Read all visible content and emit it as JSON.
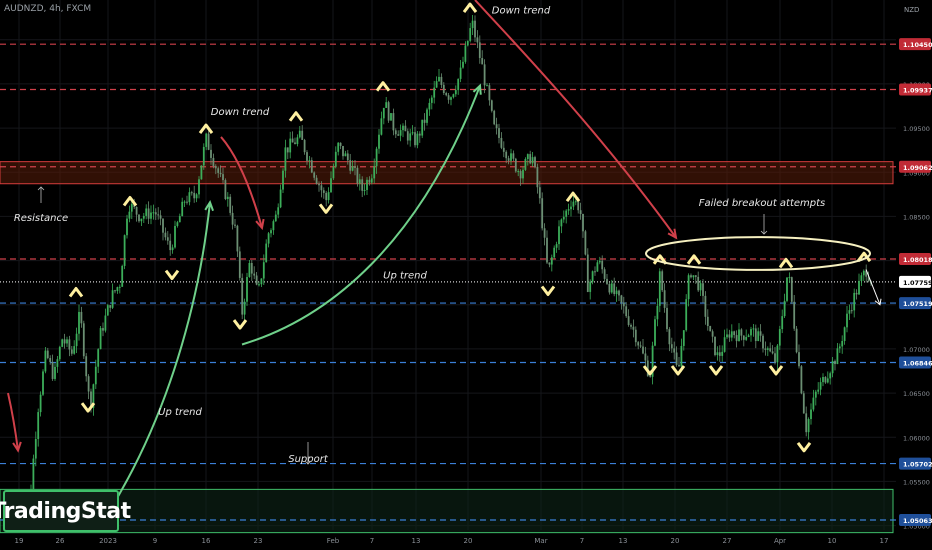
{
  "header": {
    "symbol": "AUDNZD, 4h, FXCM"
  },
  "currency_label": "NZD",
  "brand": {
    "name": "TradingStat"
  },
  "colors": {
    "background": "#000000",
    "candle_up": "#3cae5a",
    "candle_down": "#6b8f73",
    "resistance_line": "#d0404a",
    "support_line": "#3b7fd6",
    "resistance_zone": "#d43c3c",
    "support_zone": "#3fbf6a",
    "up_arrow": "#6fd08a",
    "down_arrow": "#d0404a",
    "swing_marker": "#fff0a0"
  },
  "chart_data": {
    "type": "candlestick",
    "symbol": "AUDNZD",
    "timeframe": "4h",
    "source": "FXCM",
    "ylim": [
      1.0495,
      1.1095
    ],
    "y_ticks": [
      1.05,
      1.055,
      1.06,
      1.065,
      1.07,
      1.075,
      1.08,
      1.085,
      1.09,
      1.095,
      1.1,
      1.105
    ],
    "y_tick_labels": [
      "1.05000",
      "1.05500",
      "1.06000",
      "1.06500",
      "1.07000",
      "1.07500",
      "1.08000",
      "1.08500",
      "1.09000",
      "1.09500",
      "1.10000",
      "1.10500"
    ],
    "x_tick_labels": [
      "19",
      "26",
      "2023",
      "9",
      "16",
      "23",
      "Feb",
      "7",
      "13",
      "20",
      "Mar",
      "7",
      "13",
      "20",
      "27",
      "Apr",
      "10",
      "17"
    ],
    "x_tick_values": [
      19,
      60,
      108,
      155,
      206,
      258,
      333,
      372,
      416,
      468,
      541,
      582,
      623,
      675,
      727,
      780,
      832,
      884
    ],
    "price_levels": [
      {
        "label": "1.10450",
        "value": 1.1045,
        "style": "dashed",
        "color": "#d0404a"
      },
      {
        "label": "1.09937",
        "value": 1.09937,
        "style": "dashed",
        "color": "#d0404a"
      },
      {
        "label": "1.09062",
        "value": 1.09062,
        "style": "dashed",
        "color": "#d0404a"
      },
      {
        "label": "1.08018",
        "value": 1.08018,
        "style": "dashed",
        "color": "#d0404a"
      },
      {
        "label": "1.07759",
        "value": 1.07759,
        "style": "dotted",
        "color": "#cfcfcf"
      },
      {
        "label": "1.07519",
        "value": 1.07519,
        "style": "dashed",
        "color": "#3b7fd6"
      },
      {
        "label": "1.06846",
        "value": 1.06846,
        "style": "dashed",
        "color": "#3b7fd6"
      },
      {
        "label": "1.05702",
        "value": 1.05702,
        "style": "dashed",
        "color": "#3b7fd6"
      },
      {
        "label": "1.05063",
        "value": 1.05063,
        "style": "dashed",
        "color": "#3b7fd6"
      }
    ],
    "zones": [
      {
        "name": "Resistance",
        "y_top": 1.0912,
        "y_bottom": 1.0887
      },
      {
        "name": "Support",
        "y_top": 1.0541,
        "y_bottom": 1.0492
      }
    ],
    "price_path": [
      [
        19,
        1.0505
      ],
      [
        30,
        1.0532
      ],
      [
        38,
        1.0633
      ],
      [
        46,
        1.0695
      ],
      [
        54,
        1.0668
      ],
      [
        62,
        1.0712
      ],
      [
        72,
        1.0695
      ],
      [
        80,
        1.074
      ],
      [
        90,
        1.0633
      ],
      [
        100,
        1.0715
      ],
      [
        112,
        1.076
      ],
      [
        120,
        1.0775
      ],
      [
        128,
        1.0865
      ],
      [
        140,
        1.085
      ],
      [
        155,
        1.0856
      ],
      [
        170,
        1.0812
      ],
      [
        185,
        1.087
      ],
      [
        195,
        1.0872
      ],
      [
        206,
        1.0938
      ],
      [
        218,
        1.09
      ],
      [
        228,
        1.0868
      ],
      [
        236,
        1.083
      ],
      [
        242,
        1.074
      ],
      [
        250,
        1.08
      ],
      [
        258,
        1.076
      ],
      [
        268,
        1.083
      ],
      [
        276,
        1.085
      ],
      [
        285,
        1.0925
      ],
      [
        300,
        1.094
      ],
      [
        314,
        1.09
      ],
      [
        326,
        1.0868
      ],
      [
        338,
        1.093
      ],
      [
        350,
        1.091
      ],
      [
        362,
        1.088
      ],
      [
        372,
        1.09
      ],
      [
        384,
        1.098
      ],
      [
        394,
        1.095
      ],
      [
        404,
        1.0945
      ],
      [
        416,
        1.0935
      ],
      [
        425,
        1.096
      ],
      [
        438,
        1.1005
      ],
      [
        450,
        1.0985
      ],
      [
        460,
        1.101
      ],
      [
        472,
        1.107
      ],
      [
        482,
        1.102
      ],
      [
        494,
        1.095
      ],
      [
        508,
        1.092
      ],
      [
        520,
        1.09
      ],
      [
        532,
        1.092
      ],
      [
        540,
        1.0865
      ],
      [
        548,
        1.0785
      ],
      [
        560,
        1.084
      ],
      [
        572,
        1.087
      ],
      [
        580,
        1.086
      ],
      [
        588,
        1.077
      ],
      [
        598,
        1.08
      ],
      [
        610,
        1.077
      ],
      [
        624,
        1.0745
      ],
      [
        636,
        1.0715
      ],
      [
        650,
        1.067
      ],
      [
        660,
        1.0785
      ],
      [
        668,
        1.072
      ],
      [
        678,
        1.067
      ],
      [
        690,
        1.079
      ],
      [
        700,
        1.077
      ],
      [
        710,
        1.0715
      ],
      [
        718,
        1.069
      ],
      [
        730,
        1.072
      ],
      [
        740,
        1.0715
      ],
      [
        752,
        1.072
      ],
      [
        764,
        1.0705
      ],
      [
        776,
        1.0685
      ],
      [
        788,
        1.079
      ],
      [
        798,
        1.069
      ],
      [
        806,
        1.061
      ],
      [
        816,
        1.065
      ],
      [
        826,
        1.067
      ],
      [
        838,
        1.0695
      ],
      [
        848,
        1.074
      ],
      [
        858,
        1.077
      ],
      [
        866,
        1.079
      ],
      [
        872,
        1.0776
      ]
    ],
    "annotations": [
      {
        "text": "Down trend",
        "x": 521,
        "y": 1.108
      },
      {
        "text": "Down trend",
        "x": 240,
        "y": 1.0965
      },
      {
        "text": "Up trend",
        "x": 405,
        "y": 1.078
      },
      {
        "text": "Up trend",
        "x": 180,
        "y": 1.0625
      },
      {
        "text": "Resistance",
        "x": 41,
        "y": 1.0845
      },
      {
        "text": "Support",
        "x": 308,
        "y": 1.0572
      },
      {
        "text": "Failed breakout attempts",
        "x": 762,
        "y": 1.0862
      }
    ],
    "peak_markers": [
      [
        76,
        1.0765
      ],
      [
        130,
        1.0868
      ],
      [
        206,
        1.095
      ],
      [
        296,
        1.0964
      ],
      [
        383,
        1.0998
      ],
      [
        470,
        1.1087
      ],
      [
        573,
        1.0873
      ],
      [
        660,
        1.0802
      ],
      [
        694,
        1.0802
      ],
      [
        786,
        1.0798
      ],
      [
        864,
        1.0805
      ]
    ],
    "trough_markers": [
      [
        88,
        1.0633
      ],
      [
        172,
        1.0783
      ],
      [
        240,
        1.0727
      ],
      [
        326,
        1.0858
      ],
      [
        548,
        1.0765
      ],
      [
        650,
        1.0675
      ],
      [
        678,
        1.0675
      ],
      [
        716,
        1.0675
      ],
      [
        776,
        1.0675
      ],
      [
        804,
        1.0588
      ]
    ],
    "trend_arrows": [
      {
        "kind": "down",
        "points": [
          [
            475,
            1.1095
          ],
          [
            520,
            1.104
          ],
          [
            600,
            1.0945
          ],
          [
            676,
            1.0826
          ]
        ]
      },
      {
        "kind": "down",
        "points": [
          [
            221,
            1.094
          ],
          [
            244,
            1.091
          ],
          [
            262,
            1.0837
          ]
        ]
      },
      {
        "kind": "down",
        "points": [
          [
            8,
            1.065
          ],
          [
            14,
            1.062
          ],
          [
            18,
            1.0585
          ]
        ]
      },
      {
        "kind": "up",
        "points": [
          [
            242,
            1.0705
          ],
          [
            330,
            1.0735
          ],
          [
            420,
            1.082
          ],
          [
            480,
            1.0998
          ]
        ]
      },
      {
        "kind": "up",
        "points": [
          [
            100,
            1.05
          ],
          [
            170,
            1.062
          ],
          [
            200,
            1.076
          ],
          [
            210,
            1.0866
          ]
        ]
      }
    ],
    "breakout_ellipse": {
      "cx": 758,
      "cy": 1.0808,
      "rx": 112,
      "ry": 1.0803
    }
  }
}
